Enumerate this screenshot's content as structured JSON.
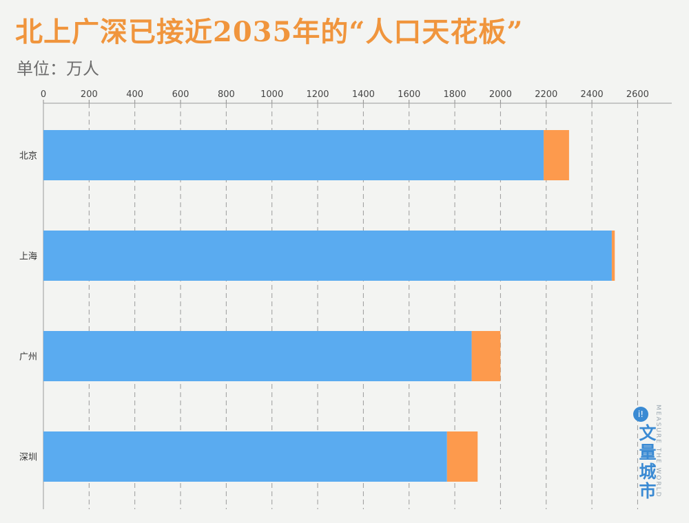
{
  "title": "北上广深已接近2035年的“人口天花板”",
  "unit_label": "单位：万人",
  "colors": {
    "background": "#f3f4f2",
    "title": "#f0953d",
    "current": "#5aabf0",
    "remaining": "#fd9a4d"
  },
  "watermark": {
    "icon": "i-logo-icon",
    "name": "文量城市",
    "slogan": "MEASURE THE WORLD"
  },
  "chart_data": {
    "type": "bar",
    "orientation": "horizontal",
    "stacked": true,
    "categories": [
      "北京",
      "上海",
      "广州",
      "深圳"
    ],
    "series": [
      {
        "values": [
          2189,
          2487,
          1874,
          1766
        ],
        "color": "#5aabf0"
      },
      {
        "values": [
          111,
          13,
          126,
          134
        ],
        "color": "#fd9a4d"
      }
    ],
    "x_ticks": [
      0,
      200,
      400,
      600,
      800,
      1000,
      1200,
      1400,
      1600,
      1800,
      2000,
      2200,
      2400,
      2600
    ],
    "xlim": [
      0,
      2750
    ],
    "grid": "vertical dashed",
    "x_axis_position": "top",
    "legend": "none"
  }
}
